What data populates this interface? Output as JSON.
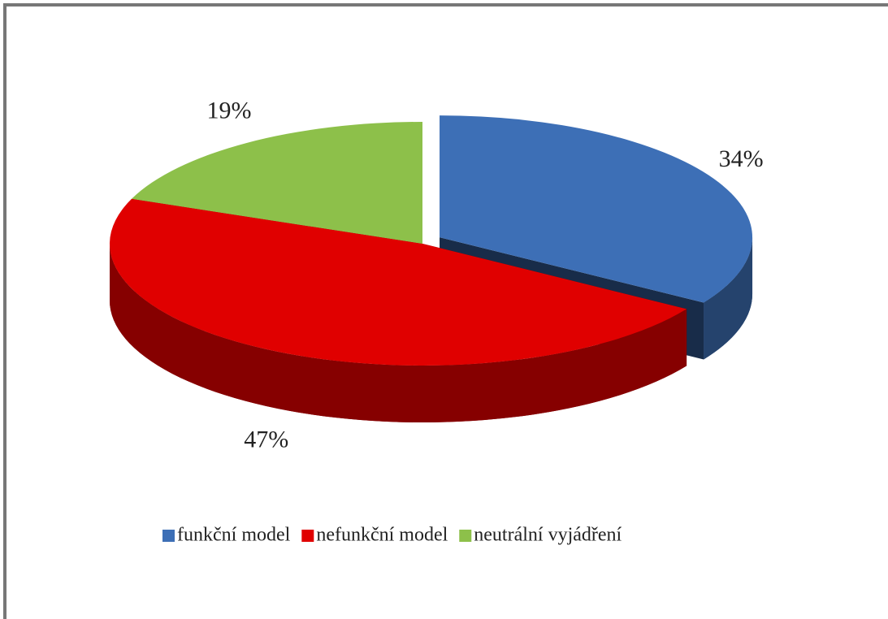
{
  "chart_data": {
    "type": "pie",
    "three_d": true,
    "categories": [
      "funkční model",
      "nefunkční model",
      "neutrální vyjádření"
    ],
    "values": [
      34,
      47,
      19
    ],
    "value_labels": [
      "34%",
      "47%",
      "19%"
    ],
    "colors": [
      "#3d6fb6",
      "#e00000",
      "#8dc04a"
    ],
    "legend": "bottom"
  }
}
